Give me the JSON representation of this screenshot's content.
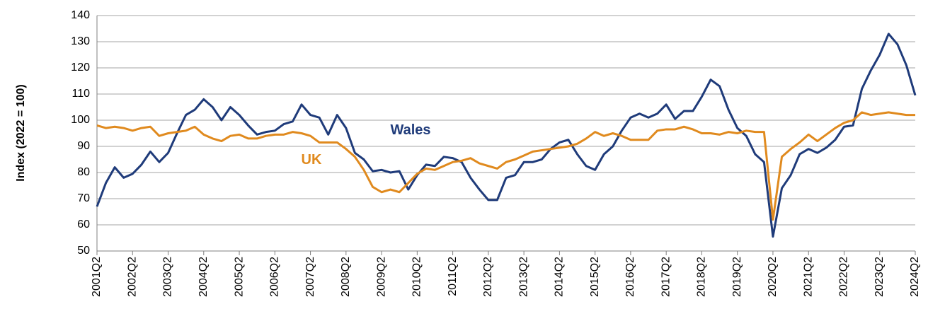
{
  "chart_data": {
    "type": "line",
    "y_label": "Index (2022 = 100)",
    "categories": [
      "2001Q2",
      null,
      null,
      null,
      "2002Q2",
      null,
      null,
      null,
      "2003Q2",
      null,
      null,
      null,
      "2004Q2",
      null,
      null,
      null,
      "2005Q2",
      null,
      null,
      null,
      "2006Q2",
      null,
      null,
      null,
      "2007Q2",
      null,
      null,
      null,
      "2008Q2",
      null,
      null,
      null,
      "2009Q2",
      null,
      null,
      null,
      "2010Q2",
      null,
      null,
      null,
      "2011Q2",
      null,
      null,
      null,
      "2012Q2",
      null,
      null,
      null,
      "2013Q2",
      null,
      null,
      null,
      "2014Q2",
      null,
      null,
      null,
      "2015Q2",
      null,
      null,
      null,
      "2016Q2",
      null,
      null,
      null,
      "2017Q2",
      null,
      null,
      null,
      "2018Q2",
      null,
      null,
      null,
      "2019Q2",
      null,
      null,
      null,
      "2020Q2",
      null,
      null,
      null,
      "2021Q2",
      null,
      null,
      null,
      "2022Q2",
      null,
      null,
      null,
      "2023Q2",
      null,
      null,
      null,
      "2024Q2"
    ],
    "series": [
      {
        "name": "Wales",
        "color": "#1f3b7a",
        "values": [
          67,
          76,
          82,
          78,
          79.5,
          83,
          88,
          84,
          87.5,
          95,
          102,
          104,
          108,
          105,
          100,
          105,
          102,
          98,
          94.5,
          95.5,
          96,
          98.5,
          99.5,
          106,
          102,
          101,
          94.5,
          102,
          97,
          87.5,
          85,
          80.5,
          81,
          80,
          80.5,
          73.5,
          79,
          83,
          82.5,
          86,
          85.5,
          84,
          78,
          73.5,
          69.5,
          69.5,
          78,
          79,
          84,
          84,
          85,
          89,
          91.5,
          92.5,
          87,
          82.5,
          81,
          87,
          90,
          96,
          101,
          102.5,
          101,
          102.5,
          106,
          100.5,
          103.5,
          103.5,
          109,
          115.5,
          113,
          104,
          97,
          94,
          87,
          84,
          55.5,
          74,
          79,
          87,
          89,
          87.5,
          89.5,
          92.5,
          97.5,
          98,
          112,
          119,
          125,
          133,
          129,
          121,
          109.5
        ]
      },
      {
        "name": "UK",
        "color": "#e08a1e",
        "values": [
          98,
          97,
          97.5,
          97,
          96,
          97,
          97.5,
          94,
          95,
          95.5,
          96,
          97.5,
          94.5,
          93,
          92,
          94,
          94.5,
          93,
          93,
          94,
          94.5,
          94.5,
          95.5,
          95,
          94,
          91.5,
          91.5,
          91.5,
          89,
          86,
          81,
          74.5,
          72.5,
          73.5,
          72.5,
          76,
          79.5,
          81.5,
          81,
          82.5,
          84,
          84.5,
          85.5,
          83.5,
          82.5,
          81.5,
          84,
          85,
          86.5,
          88,
          88.5,
          89,
          89.5,
          90,
          91,
          93,
          95.5,
          94,
          95,
          94,
          92.5,
          92.5,
          92.5,
          96,
          96.5,
          96.5,
          97.5,
          96.5,
          95,
          95,
          94.5,
          95.5,
          95,
          96,
          95.5,
          95.5,
          62,
          86,
          89,
          91.5,
          94.5,
          92,
          94.5,
          97,
          99,
          100,
          103,
          102,
          102.5,
          103,
          102.5,
          102,
          102
        ]
      }
    ],
    "ylim": [
      50,
      140
    ],
    "yticks": [
      50,
      60,
      70,
      80,
      90,
      100,
      110,
      120,
      130,
      140
    ],
    "grid": true
  }
}
